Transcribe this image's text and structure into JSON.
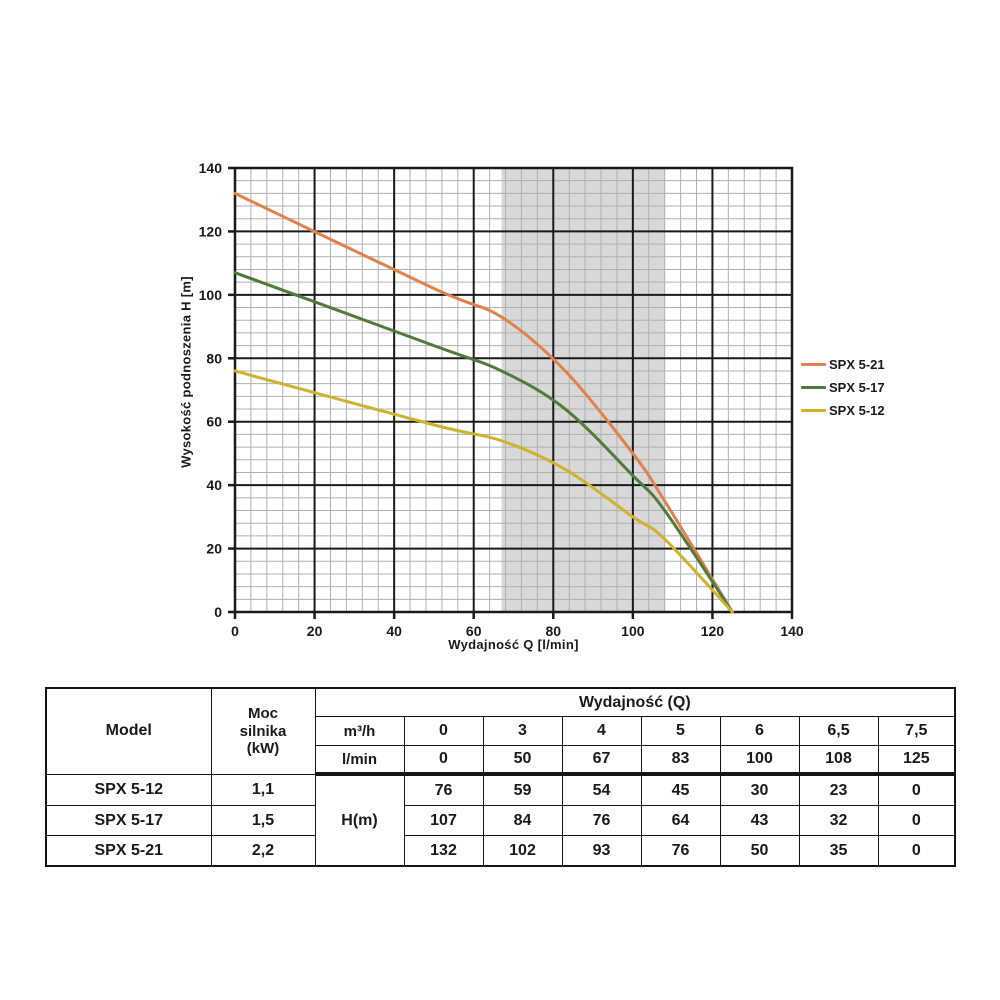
{
  "chart_data": {
    "type": "line",
    "title": "",
    "xlabel": "Wydajność Q [l/min]",
    "ylabel": "Wysokość podnoszenia H [m]",
    "xlim": [
      0,
      140
    ],
    "ylim": [
      0,
      140
    ],
    "x_ticks": [
      0,
      20,
      40,
      60,
      80,
      100,
      120,
      140
    ],
    "y_ticks": [
      0,
      20,
      40,
      60,
      80,
      100,
      120,
      140
    ],
    "minor_step": 4,
    "grid": "on",
    "legend_position": "right",
    "band": {
      "x_from": 67,
      "x_to": 108,
      "color": "#d8d8d8"
    },
    "x": [
      0,
      50,
      67,
      83,
      100,
      108,
      125
    ],
    "series": [
      {
        "name": "SPX 5-21",
        "color": "#e0824e",
        "values": [
          132,
          102,
          93,
          76,
          50,
          35,
          0
        ]
      },
      {
        "name": "SPX 5-17",
        "color": "#517b3c",
        "values": [
          107,
          84,
          76,
          64,
          43,
          32,
          0
        ]
      },
      {
        "name": "SPX 5-12",
        "color": "#cdb32e",
        "values": [
          76,
          59,
          54,
          45,
          30,
          23,
          0
        ]
      }
    ],
    "colors": {
      "major_grid": "#1a1a1a",
      "minor_grid": "#b0b0b0",
      "axis": "#1a1a1a"
    }
  },
  "table": {
    "col_model": "Model",
    "col_power": "Moc\nsilnika\n(kW)",
    "q_header": "Wydajność (Q)",
    "unit_m3h": "m³/h",
    "unit_lmin": "l/min",
    "h_label": "H(m)",
    "q_m3h": [
      "0",
      "3",
      "4",
      "5",
      "6",
      "6,5",
      "7,5"
    ],
    "q_lmin": [
      "0",
      "50",
      "67",
      "83",
      "100",
      "108",
      "125"
    ],
    "rows": [
      {
        "model": "SPX 5-12",
        "power": "1,1",
        "h": [
          "76",
          "59",
          "54",
          "45",
          "30",
          "23",
          "0"
        ]
      },
      {
        "model": "SPX 5-17",
        "power": "1,5",
        "h": [
          "107",
          "84",
          "76",
          "64",
          "43",
          "32",
          "0"
        ]
      },
      {
        "model": "SPX 5-21",
        "power": "2,2",
        "h": [
          "132",
          "102",
          "93",
          "76",
          "50",
          "35",
          "0"
        ]
      }
    ]
  }
}
